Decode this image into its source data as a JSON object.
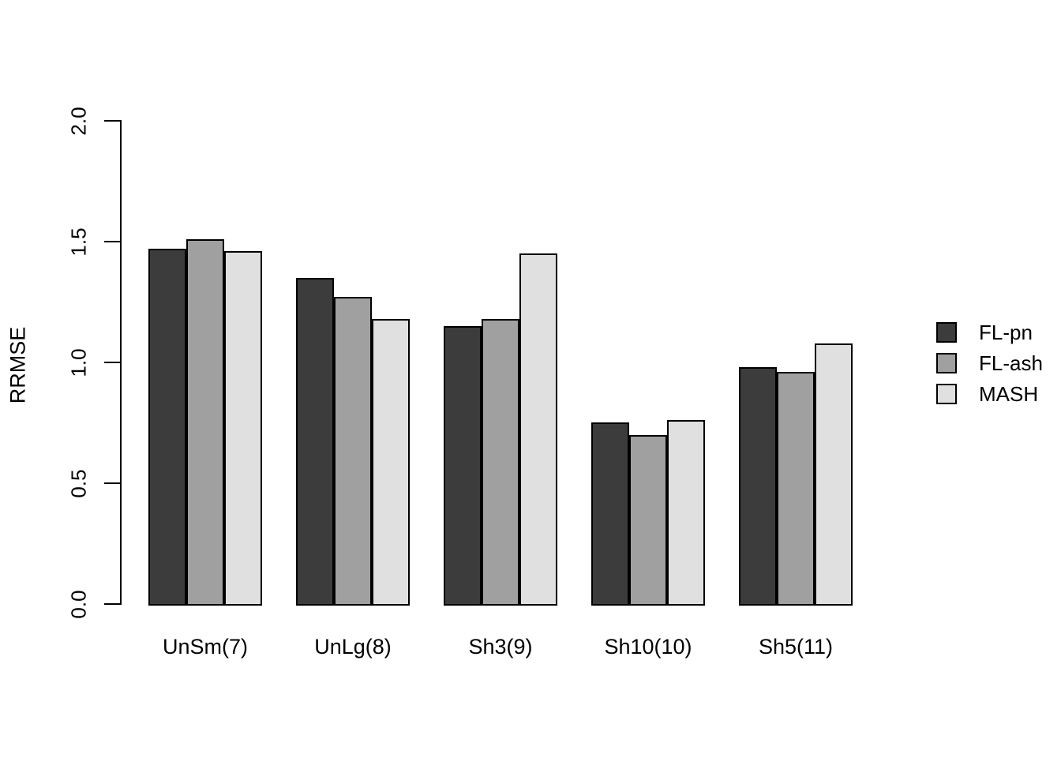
{
  "chart_data": {
    "type": "bar",
    "title": "",
    "xlabel": "",
    "ylabel": "RRMSE",
    "ylim": [
      0.0,
      2.0
    ],
    "yticks": [
      "0.0",
      "0.5",
      "1.0",
      "1.5",
      "2.0"
    ],
    "grid": false,
    "legend_position": "right",
    "background_color": "#ffffff",
    "axis_color": "#000000",
    "bar_border_color": "#000000",
    "categories": [
      "UnSm(7)",
      "UnLg(8)",
      "Sh3(9)",
      "Sh10(10)",
      "Sh5(11)"
    ],
    "series": [
      {
        "name": "FL-pn",
        "color": "#3c3c3c",
        "values": [
          1.47,
          1.35,
          1.15,
          0.75,
          0.98
        ]
      },
      {
        "name": "FL-ash",
        "color": "#a0a0a0",
        "values": [
          1.51,
          1.27,
          1.18,
          0.7,
          0.96
        ]
      },
      {
        "name": "MASH",
        "color": "#e0e0e0",
        "values": [
          1.46,
          1.18,
          1.45,
          0.76,
          1.08
        ]
      }
    ]
  }
}
